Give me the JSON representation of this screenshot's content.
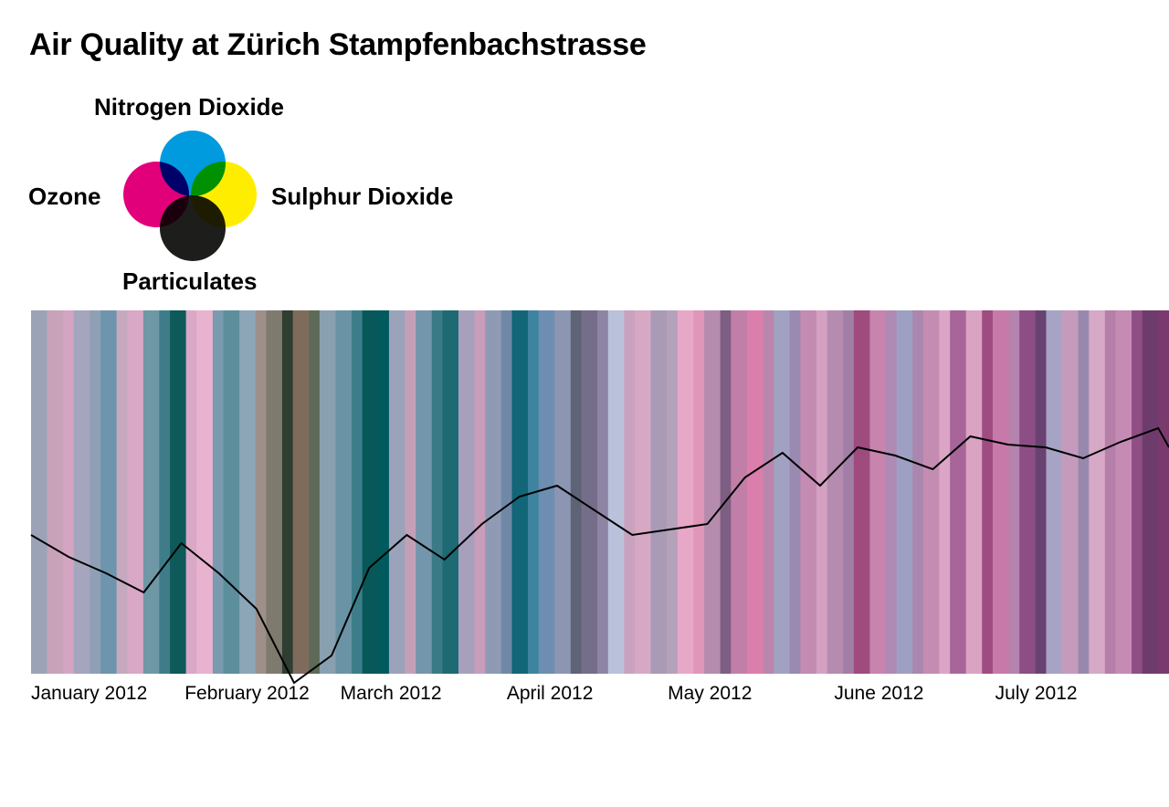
{
  "title": "Air Quality at Zürich Stampfenbachstrasse",
  "legend": {
    "nitrogen_dioxide": {
      "label": "Nitrogen Dioxide",
      "color": "#009BDF"
    },
    "ozone": {
      "label": "Ozone",
      "color": "#E2007A"
    },
    "sulphur_dioxide": {
      "label": "Sulphur Dioxide",
      "color": "#FFED00"
    },
    "particulates": {
      "label": "Particulates",
      "color": "#1D1D1B"
    }
  },
  "chart_data": {
    "type": "line",
    "x_axis": {
      "start": "2012-01-01",
      "end": "2012-07-31",
      "tick_labels": [
        "January 2012",
        "February 2012",
        "March 2012",
        "April 2012",
        "May 2012",
        "June 2012",
        "July 2012"
      ],
      "tick_dates": [
        "2012-01-01",
        "2012-02-01",
        "2012-03-01",
        "2012-04-01",
        "2012-05-01",
        "2012-06-01",
        "2012-07-01"
      ]
    },
    "y_axis": {
      "labels": "none",
      "ylim": [
        -30,
        100
      ]
    },
    "line_series": {
      "x_dates": [
        "2012-01-01",
        "2012-01-08",
        "2012-01-15",
        "2012-01-22",
        "2012-01-29",
        "2012-02-05",
        "2012-02-12",
        "2012-02-19",
        "2012-02-26",
        "2012-03-04",
        "2012-03-11",
        "2012-03-18",
        "2012-03-25",
        "2012-04-01",
        "2012-04-08",
        "2012-04-15",
        "2012-04-22",
        "2012-04-29",
        "2012-05-06",
        "2012-05-13",
        "2012-05-20",
        "2012-05-27",
        "2012-06-03",
        "2012-06-10",
        "2012-06-17",
        "2012-06-24",
        "2012-07-01",
        "2012-07-08",
        "2012-07-15",
        "2012-07-22",
        "2012-07-29",
        "2012-07-31"
      ],
      "values": [
        24,
        16,
        10,
        3,
        21,
        10,
        -3,
        -30,
        -20,
        12,
        24,
        15,
        28,
        38,
        42,
        33,
        24,
        26,
        28,
        45,
        54,
        42,
        56,
        53,
        48,
        60,
        57,
        56,
        52,
        58,
        63,
        56
      ]
    },
    "background_stripes": {
      "description": "daily color stripes, one per day; color blends the four pollutants",
      "colors": [
        "#9CA3B7",
        "#C7A2B9",
        "#D4A5C2",
        "#A6A5BE",
        "#8FA0B6",
        "#6E95AD",
        "#C5A9BF",
        "#D8A8C6",
        "#6F98A6",
        "#3E7C89",
        "#0E5A5A",
        "#D9A8C6",
        "#E8B3CE",
        "#7A9AB0",
        "#5C8E9C",
        "#8CA6B8",
        "#9E8F8A",
        "#7E7A6E",
        "#2E3E30",
        "#7F6B5C",
        "#5E6A58",
        "#89A0B0",
        "#6A93A6",
        "#3D7D8A",
        "#08585A",
        "#005A5E",
        "#9AA3BA",
        "#C4A0B8",
        "#7496AC",
        "#3B7B88",
        "#1E6A72",
        "#A6A0BC",
        "#C89DBA",
        "#8F9AB4",
        "#6F88A6",
        "#126677",
        "#3E84A0",
        "#6D8EB0",
        "#8C96B2",
        "#5E6376",
        "#756E8A",
        "#8E84A4",
        "#B9C2DA",
        "#C8A2BE",
        "#D7A8C4",
        "#A99AB5",
        "#B6A1BB",
        "#E6A8C6",
        "#E096B8",
        "#B58CAE",
        "#7E5E82",
        "#C17FA8",
        "#DC7EAB",
        "#B987AE",
        "#A1A2C2",
        "#9A89B0",
        "#C48BB3",
        "#D4A1C3",
        "#B58CB0",
        "#A17EA6",
        "#9E4B7E",
        "#C884AD",
        "#AE8AB5",
        "#9DA0C2",
        "#AB86AE",
        "#C58CB2",
        "#DBA6C5",
        "#A7659A",
        "#D9A3C1",
        "#9F4C80",
        "#C77AA9",
        "#B583AD",
        "#8D4E85",
        "#694272",
        "#A7A3C4",
        "#C49BBC",
        "#9888AE",
        "#D6A9C6",
        "#B67FA9",
        "#C58BB4",
        "#8F4F85",
        "#6E3B6D",
        "#7A3A6E"
      ]
    },
    "grid": false
  }
}
